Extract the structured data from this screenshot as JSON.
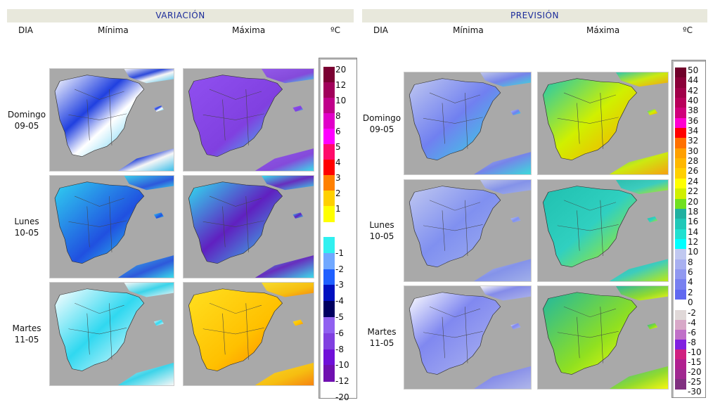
{
  "variacion": {
    "title": "VARIACIÓN",
    "col_dia": "DIA",
    "col_min": "Mínima",
    "col_max": "Máxima",
    "unit": "ºC",
    "days": [
      {
        "name": "Domingo",
        "date": "09-05"
      },
      {
        "name": "Lunes",
        "date": "10-05"
      },
      {
        "name": "Martes",
        "date": "11-05"
      }
    ],
    "legend_pos": [
      {
        "label": "20",
        "color": "#7a0032"
      },
      {
        "label": "12",
        "color": "#a0005a"
      },
      {
        "label": "10",
        "color": "#c0008a"
      },
      {
        "label": "8",
        "color": "#e000c8"
      },
      {
        "label": "6",
        "color": "#ff00ff"
      },
      {
        "label": "5",
        "color": "#ff0a6a"
      },
      {
        "label": "4",
        "color": "#ff0000"
      },
      {
        "label": "3",
        "color": "#ff8000"
      },
      {
        "label": "2",
        "color": "#ffd000"
      },
      {
        "label": "1",
        "color": "#ffff00"
      }
    ],
    "legend_neg": [
      {
        "label": "-1",
        "color": "#30f0f0"
      },
      {
        "label": "-2",
        "color": "#70a8ff"
      },
      {
        "label": "-3",
        "color": "#2060ff"
      },
      {
        "label": "-4",
        "color": "#0010c0"
      },
      {
        "label": "-5",
        "color": "#000060"
      },
      {
        "label": "-6",
        "color": "#9060f0"
      },
      {
        "label": "-8",
        "color": "#8040e0"
      },
      {
        "label": "-10",
        "color": "#7010d8"
      },
      {
        "label": "-12",
        "color": "#7010b0"
      },
      {
        "label": "-20",
        "color": "#7010b0"
      }
    ]
  },
  "prevision": {
    "title": "PREVISIÓN",
    "col_dia": "DIA",
    "col_min": "Mínima",
    "col_max": "Máxima",
    "unit": "ºC",
    "days": [
      {
        "name": "Domingo",
        "date": "09-05"
      },
      {
        "name": "Lunes",
        "date": "10-05"
      },
      {
        "name": "Martes",
        "date": "11-05"
      }
    ],
    "legend_pos": [
      {
        "label": "50",
        "color": "#70002a"
      },
      {
        "label": "44",
        "color": "#8a0038"
      },
      {
        "label": "42",
        "color": "#a00048"
      },
      {
        "label": "40",
        "color": "#b8005a"
      },
      {
        "label": "38",
        "color": "#d0007a"
      },
      {
        "label": "36",
        "color": "#ff00d0"
      },
      {
        "label": "34",
        "color": "#ff0000"
      },
      {
        "label": "32",
        "color": "#ff7000"
      },
      {
        "label": "30",
        "color": "#ffa000"
      },
      {
        "label": "28",
        "color": "#ffb800"
      },
      {
        "label": "26",
        "color": "#ffd000"
      },
      {
        "label": "24",
        "color": "#ffff00"
      },
      {
        "label": "22",
        "color": "#d0f000"
      },
      {
        "label": "20",
        "color": "#70e020"
      },
      {
        "label": "18",
        "color": "#20b0a0"
      },
      {
        "label": "16",
        "color": "#20c8b8"
      },
      {
        "label": "14",
        "color": "#20e0d0"
      },
      {
        "label": "12",
        "color": "#00ffff"
      },
      {
        "label": "10",
        "color": "#c0c8f0"
      },
      {
        "label": "8",
        "color": "#a8b0f0"
      },
      {
        "label": "6",
        "color": "#9098f0"
      },
      {
        "label": "4",
        "color": "#7880f0"
      },
      {
        "label": "2",
        "color": "#6068f0"
      },
      {
        "label": "0",
        "color": ""
      }
    ],
    "legend_neg": [
      {
        "label": "-2",
        "color": "#e0d8d8"
      },
      {
        "label": "-4",
        "color": "#d8a8c8"
      },
      {
        "label": "-6",
        "color": "#c070c8"
      },
      {
        "label": "-8",
        "color": "#8020e0"
      },
      {
        "label": "-10",
        "color": "#d02080"
      },
      {
        "label": "-15",
        "color": "#b02090"
      },
      {
        "label": "-20",
        "color": "#a02890"
      },
      {
        "label": "-25",
        "color": "#803080"
      },
      {
        "label": "-30",
        "color": ""
      }
    ]
  }
}
